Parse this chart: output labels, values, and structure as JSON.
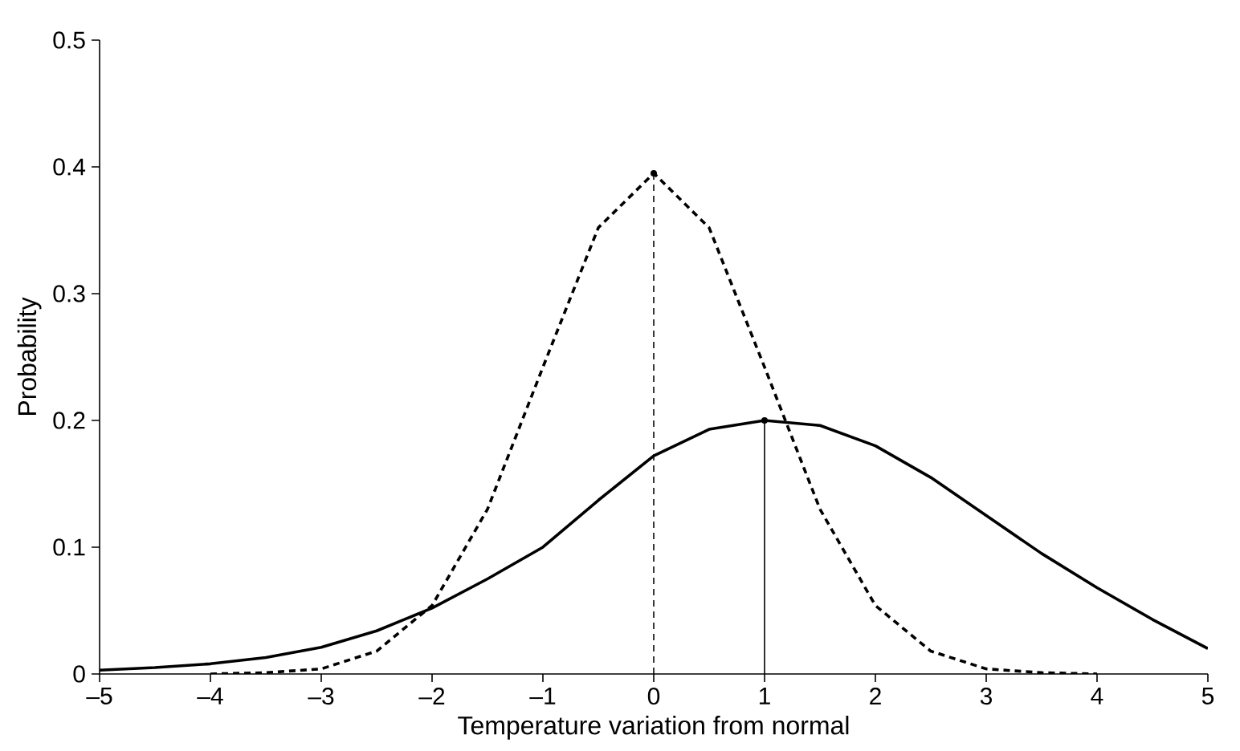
{
  "chart_data": {
    "type": "line",
    "xlabel": "Temperature variation from normal",
    "ylabel": "Probability",
    "xlim": [
      -5,
      5
    ],
    "ylim": [
      0,
      0.5
    ],
    "xticks": [
      {
        "value": -5,
        "label": "–5"
      },
      {
        "value": -4,
        "label": "–4"
      },
      {
        "value": -3,
        "label": "–3"
      },
      {
        "value": -2,
        "label": "–2"
      },
      {
        "value": -1,
        "label": "–1"
      },
      0,
      1,
      2,
      3,
      4,
      5
    ],
    "yticks": [
      0,
      0.1,
      0.2,
      0.3,
      0.4,
      0.5
    ],
    "marker": "none",
    "series": [
      {
        "color": "#000000",
        "line_style": "dashed",
        "x": [
          -4,
          -3.5,
          -3,
          -2.5,
          -2,
          -1.5,
          -1,
          -0.5,
          0,
          0.5,
          1,
          1.5,
          2,
          2.5,
          3,
          3.5,
          4
        ],
        "values": [
          0,
          0.001,
          0.004,
          0.018,
          0.054,
          0.13,
          0.242,
          0.352,
          0.395,
          0.352,
          0.242,
          0.13,
          0.054,
          0.018,
          0.004,
          0.001,
          0
        ]
      },
      {
        "color": "#000000",
        "line_style": "solid",
        "x": [
          -5,
          -4.5,
          -4,
          -3.5,
          -3,
          -2.5,
          -2,
          -1.5,
          -1,
          -0.5,
          0,
          0.5,
          1,
          1.5,
          2,
          2.5,
          3,
          3.5,
          4,
          4.5,
          5
        ],
        "values": [
          0.003,
          0.005,
          0.008,
          0.013,
          0.021,
          0.034,
          0.052,
          0.075,
          0.1,
          0.137,
          0.172,
          0.193,
          0.2,
          0.196,
          0.18,
          0.155,
          0.125,
          0.095,
          0.068,
          0.043,
          0.02
        ]
      },
      {
        "type": "lollipop",
        "color": "#000000",
        "line_style": "dashed",
        "x": [
          0
        ],
        "values": [
          0.395
        ]
      },
      {
        "type": "lollipop",
        "color": "#000000",
        "line_style": "solid",
        "x": [
          1
        ],
        "values": [
          0.2
        ]
      }
    ]
  }
}
